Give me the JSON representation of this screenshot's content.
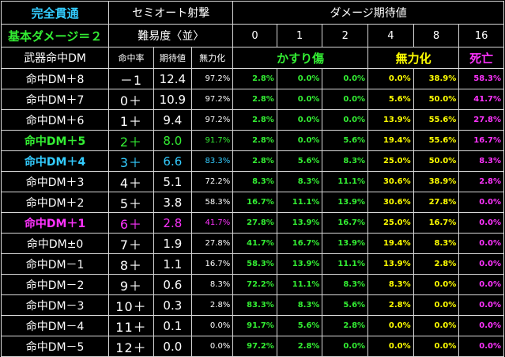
{
  "title": "完全貫通",
  "base_damage": "基本ダメージ＝２",
  "attack_type": "セミオート射撃",
  "difficulty": "難易度〈並〉",
  "expected_damage_header": "ダメージ期待値",
  "row_label_header": "武器命中DM",
  "col_hit_rate": "命中率",
  "col_expected": "期待値",
  "col_nullify": "無力化",
  "damage_values": [
    "0",
    "1",
    "2",
    "4",
    "8",
    "16"
  ],
  "category_graze": "かすり傷",
  "category_incap": "無力化",
  "category_death": "死亡",
  "colors": {
    "header_cyan": "#33ccff",
    "green": "#33ee33",
    "yellow": "#ffff00",
    "magenta": "#ff33ff",
    "white": "#ffffff"
  },
  "rows": [
    {
      "label": "命中DM＋8",
      "rate": "－1",
      "exp": "12.4",
      "nul": "97.2%",
      "p": [
        "2.8%",
        "0.0%",
        "0.0%",
        "0.0%",
        "38.9%",
        "58.3%"
      ],
      "hl": ""
    },
    {
      "label": "命中DM＋7",
      "rate": "0＋",
      "exp": "10.9",
      "nul": "97.2%",
      "p": [
        "2.8%",
        "0.0%",
        "0.0%",
        "5.6%",
        "50.0%",
        "41.7%"
      ],
      "hl": ""
    },
    {
      "label": "命中DM＋6",
      "rate": "1＋",
      "exp": "9.4",
      "nul": "97.2%",
      "p": [
        "2.8%",
        "0.0%",
        "0.0%",
        "13.9%",
        "55.6%",
        "27.8%"
      ],
      "hl": ""
    },
    {
      "label": "命中DM＋5",
      "rate": "2＋",
      "exp": "8.0",
      "nul": "91.7%",
      "p": [
        "2.8%",
        "0.0%",
        "5.6%",
        "19.4%",
        "55.6%",
        "16.7%"
      ],
      "hl": "green"
    },
    {
      "label": "命中DM＋4",
      "rate": "3＋",
      "exp": "6.6",
      "nul": "83.3%",
      "p": [
        "2.8%",
        "5.6%",
        "8.3%",
        "25.0%",
        "50.0%",
        "8.3%"
      ],
      "hl": "cyan"
    },
    {
      "label": "命中DM＋3",
      "rate": "4＋",
      "exp": "5.1",
      "nul": "72.2%",
      "p": [
        "8.3%",
        "8.3%",
        "11.1%",
        "30.6%",
        "38.9%",
        "2.8%"
      ],
      "hl": ""
    },
    {
      "label": "命中DM＋2",
      "rate": "5＋",
      "exp": "3.8",
      "nul": "58.3%",
      "p": [
        "16.7%",
        "11.1%",
        "13.9%",
        "30.6%",
        "27.8%",
        "0.0%"
      ],
      "hl": ""
    },
    {
      "label": "命中DM＋1",
      "rate": "6＋",
      "exp": "2.8",
      "nul": "41.7%",
      "p": [
        "27.8%",
        "13.9%",
        "16.7%",
        "25.0%",
        "16.7%",
        "0.0%"
      ],
      "hl": "mag"
    },
    {
      "label": "命中DM±0",
      "rate": "7＋",
      "exp": "1.9",
      "nul": "27.8%",
      "p": [
        "41.7%",
        "16.7%",
        "13.9%",
        "19.4%",
        "8.3%",
        "0.0%"
      ],
      "hl": ""
    },
    {
      "label": "命中DM－1",
      "rate": "8＋",
      "exp": "1.1",
      "nul": "16.7%",
      "p": [
        "58.3%",
        "13.9%",
        "11.1%",
        "13.9%",
        "2.8%",
        "0.0%"
      ],
      "hl": ""
    },
    {
      "label": "命中DM－2",
      "rate": "9＋",
      "exp": "0.6",
      "nul": "8.3%",
      "p": [
        "72.2%",
        "11.1%",
        "8.3%",
        "8.3%",
        "0.0%",
        "0.0%"
      ],
      "hl": ""
    },
    {
      "label": "命中DM－3",
      "rate": "10＋",
      "exp": "0.3",
      "nul": "2.8%",
      "p": [
        "83.3%",
        "8.3%",
        "5.6%",
        "2.8%",
        "0.0%",
        "0.0%"
      ],
      "hl": ""
    },
    {
      "label": "命中DM－4",
      "rate": "11＋",
      "exp": "0.1",
      "nul": "0.0%",
      "p": [
        "91.7%",
        "5.6%",
        "2.8%",
        "0.0%",
        "0.0%",
        "0.0%"
      ],
      "hl": ""
    },
    {
      "label": "命中DM－5",
      "rate": "12＋",
      "exp": "0.0",
      "nul": "0.0%",
      "p": [
        "97.2%",
        "2.8%",
        "0.0%",
        "0.0%",
        "0.0%",
        "0.0%"
      ],
      "hl": ""
    }
  ]
}
